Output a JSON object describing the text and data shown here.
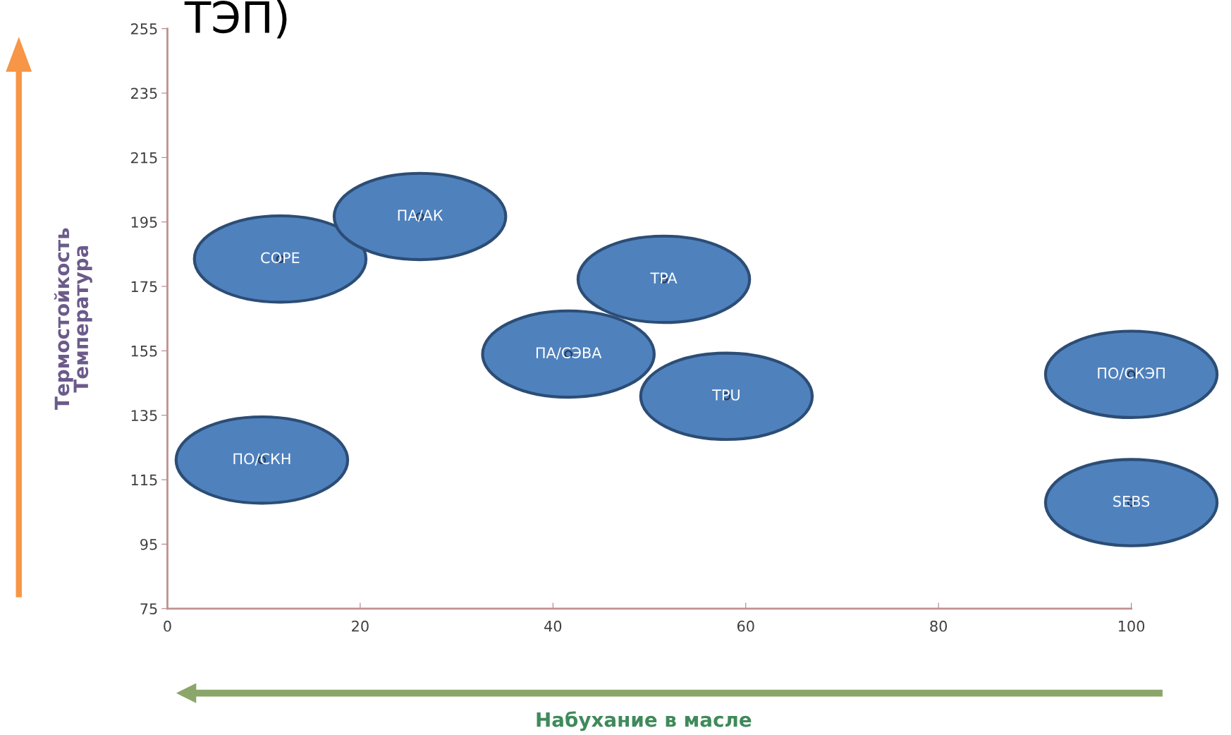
{
  "chart_data": {
    "type": "scatter",
    "title": "ТЭП)",
    "xlabel": "Набухание в масле",
    "ylabel": "Термостойкость\nТемпература",
    "xlim": [
      0,
      100
    ],
    "xticks": [
      0,
      20,
      40,
      60,
      80,
      100
    ],
    "ylim": [
      75,
      255
    ],
    "yticks": [
      75,
      95,
      115,
      135,
      155,
      175,
      195,
      215,
      235,
      255
    ],
    "grid": false,
    "legend": false,
    "series": [
      {
        "name": "COPE",
        "color": "#4f81bd",
        "x": [
          11.7
        ],
        "values": [
          183.5
        ]
      },
      {
        "name": "ПА/АК",
        "color": "#4f81bd",
        "x": [
          26.2
        ],
        "values": [
          196.7
        ]
      },
      {
        "name": "TPA",
        "color": "#4f81bd",
        "x": [
          51.5
        ],
        "values": [
          177.2
        ]
      },
      {
        "name": "ПА/СЭВА",
        "color": "#4f81bd",
        "x": [
          41.6
        ],
        "values": [
          154
        ]
      },
      {
        "name": "TPU",
        "color": "#4f81bd",
        "x": [
          58
        ],
        "values": [
          140.9
        ]
      },
      {
        "name": "ПО/СКЭП",
        "color": "#4f81bd",
        "x": [
          100
        ],
        "values": [
          147.7
        ]
      },
      {
        "name": "SEBS",
        "color": "#4f81bd",
        "x": [
          100
        ],
        "values": [
          107.9
        ]
      },
      {
        "name": "ПО/СКН",
        "color": "#4f81bd",
        "x": [
          9.8
        ],
        "values": [
          121.1
        ]
      }
    ]
  }
}
